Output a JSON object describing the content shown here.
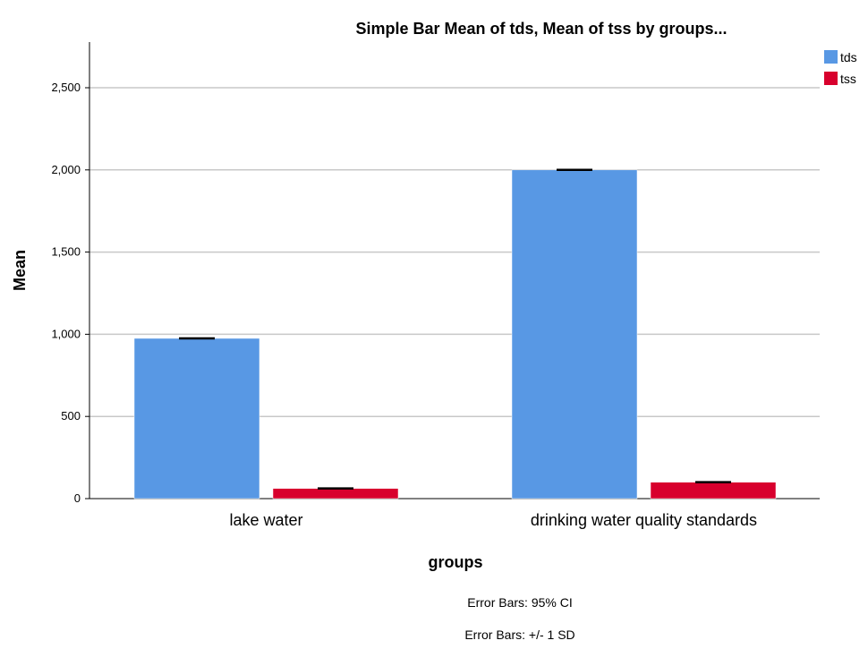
{
  "chart_data": {
    "type": "bar",
    "title": "Simple Bar Mean of tds, Mean of tss by groups...",
    "xlabel": "groups",
    "ylabel": "Mean",
    "categories": [
      "lake water",
      "drinking water quality standards"
    ],
    "series": [
      {
        "name": "tds",
        "values": [
          975,
          2000
        ],
        "color": "#5898E4"
      },
      {
        "name": "tss",
        "values": [
          62,
          100
        ],
        "color": "#D8002D"
      }
    ],
    "ylim": [
      0,
      2750
    ],
    "yticks": [
      0,
      500,
      1000,
      1500,
      2000,
      2500
    ],
    "ytick_labels": [
      "0",
      "500",
      "1,000",
      "1,500",
      "2,000",
      "2,500"
    ],
    "grid": true,
    "legend": "top-right",
    "notes": [
      "Error Bars: 95% CI",
      "Error Bars: +/- 1 SD"
    ]
  }
}
